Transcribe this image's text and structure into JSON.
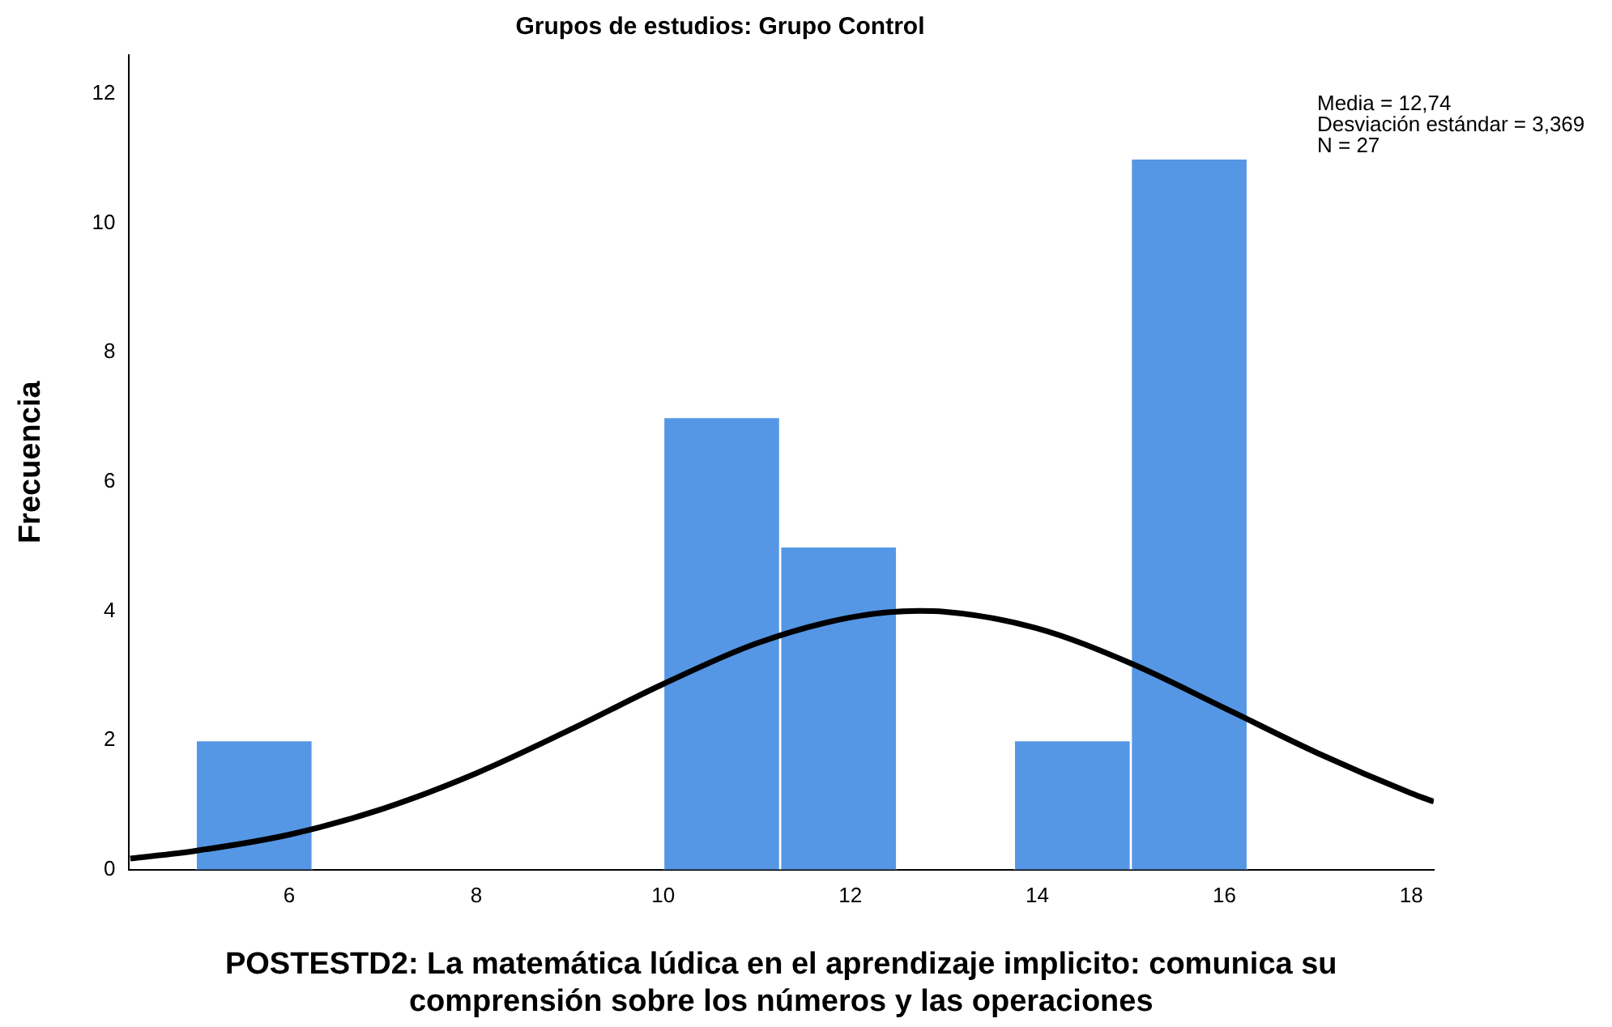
{
  "chart_data": {
    "type": "histogram",
    "title": "Grupos de estudios: Grupo Control",
    "xlabel": "POSTESTD2: La matemática lúdica en el aprendizaje implicito: comunica su comprensión sobre los números y las operaciones",
    "ylabel": "Frecuencia",
    "bins": [
      5,
      6.25,
      7.5,
      8.75,
      10,
      11.25,
      12.5,
      13.75,
      15,
      16.25
    ],
    "values": [
      2,
      0,
      0,
      0,
      7,
      5,
      0,
      2,
      11
    ],
    "color": "#5597e5",
    "series": [
      {
        "type": "line",
        "color": "#000000",
        "x": [
          4.3,
          5,
          6,
          7,
          8,
          9,
          10,
          11,
          12,
          12.74,
          13,
          14,
          15,
          16,
          17,
          18,
          18.24
        ],
        "values": [
          0.17,
          0.29,
          0.54,
          0.94,
          1.49,
          2.16,
          2.87,
          3.5,
          3.9,
          4.0,
          3.99,
          3.73,
          3.19,
          2.5,
          1.8,
          1.18,
          1.05
        ]
      }
    ],
    "xlim": [
      4.28,
      18.24
    ],
    "xticks": [
      6,
      8,
      10,
      12,
      14,
      16,
      18
    ],
    "ylim": [
      0,
      12.6
    ],
    "yticks": [
      0,
      2,
      4,
      6,
      8,
      10,
      12
    ],
    "grid": false,
    "legend": false,
    "marker": "none",
    "line_style": "solid",
    "annotations": [
      "Media = 12,74",
      "Desviación estándar = 3,369",
      "N = 27"
    ]
  }
}
